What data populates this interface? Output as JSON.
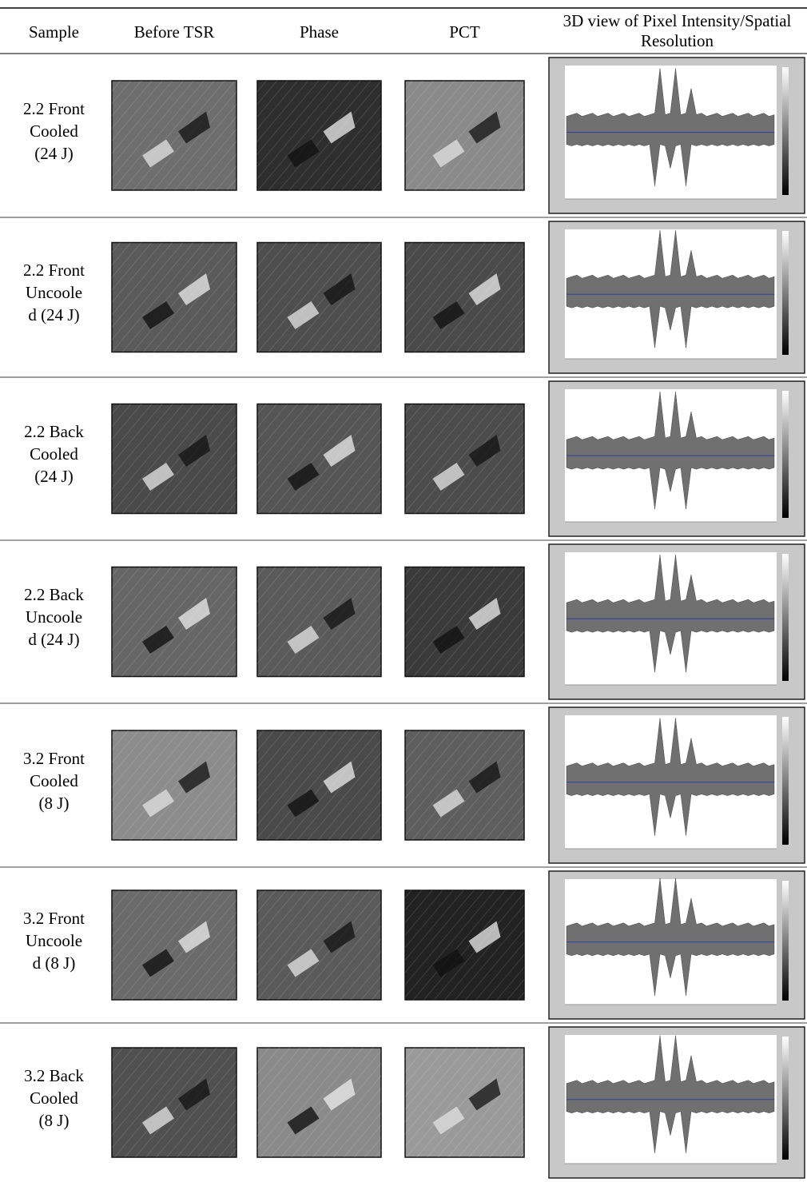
{
  "table": {
    "header": [
      "Sample",
      "Before TSR",
      "Phase",
      "PCT",
      "3D view of Pixel Intensity/Spatial Resolution"
    ],
    "rows": [
      [
        "2.2 Front",
        "Cooled",
        "(24 J)"
      ],
      [
        "2.2 Front",
        "Uncoole",
        "d (24 J)"
      ],
      [
        "2.2 Back",
        "Cooled",
        "(24 J)"
      ],
      [
        "2.2 Back",
        "Uncoole",
        "d (24 J)"
      ],
      [
        "3.2 Front",
        "Cooled",
        "(8 J)"
      ],
      [
        "3.2 Front",
        "Uncoole",
        "d (8 J)"
      ],
      [
        "3.2 Back",
        "Cooled",
        "(8 J)"
      ]
    ]
  }
}
